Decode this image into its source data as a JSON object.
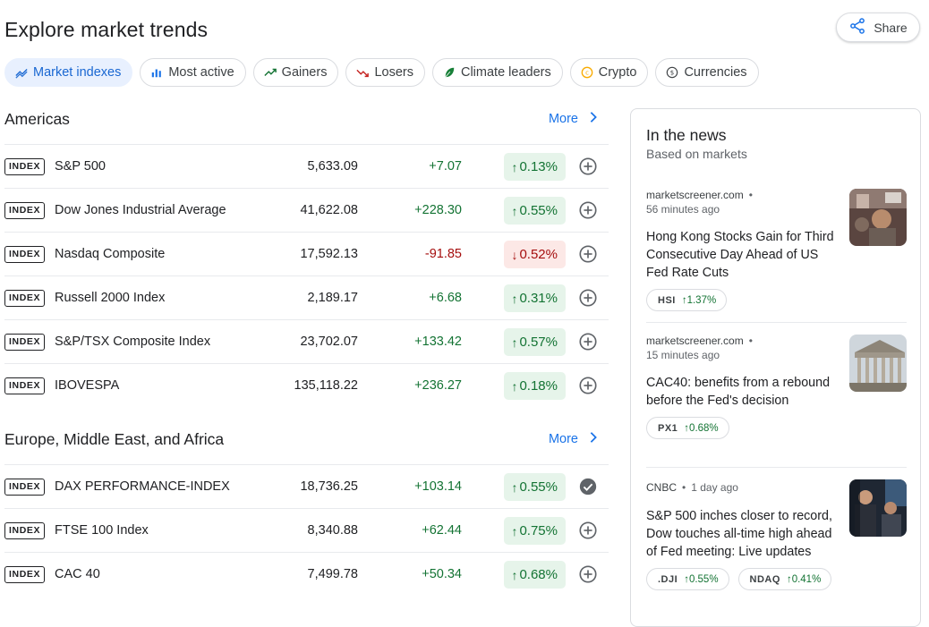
{
  "page": {
    "title": "Explore market trends",
    "share_label": "Share"
  },
  "tabs": [
    {
      "label": "Market indexes",
      "icon": "trending-icon",
      "active": true
    },
    {
      "label": "Most active",
      "icon": "bar-chart-icon"
    },
    {
      "label": "Gainers",
      "icon": "trending-up-icon"
    },
    {
      "label": "Losers",
      "icon": "trending-down-icon"
    },
    {
      "label": "Climate leaders",
      "icon": "leaf-icon"
    },
    {
      "label": "Crypto",
      "icon": "crypto-coin-icon"
    },
    {
      "label": "Currencies",
      "icon": "currency-icon"
    }
  ],
  "sections": [
    {
      "title": "Americas",
      "more_label": "More",
      "rows": [
        {
          "badge": "INDEX",
          "name": "S&P 500",
          "price": "5,633.09",
          "change": "+7.07",
          "pct": "0.13%",
          "dir": "up"
        },
        {
          "badge": "INDEX",
          "name": "Dow Jones Industrial Average",
          "price": "41,622.08",
          "change": "+228.30",
          "pct": "0.55%",
          "dir": "up"
        },
        {
          "badge": "INDEX",
          "name": "Nasdaq Composite",
          "price": "17,592.13",
          "change": "-91.85",
          "pct": "0.52%",
          "dir": "down"
        },
        {
          "badge": "INDEX",
          "name": "Russell 2000 Index",
          "price": "2,189.17",
          "change": "+6.68",
          "pct": "0.31%",
          "dir": "up"
        },
        {
          "badge": "INDEX",
          "name": "S&P/TSX Composite Index",
          "price": "23,702.07",
          "change": "+133.42",
          "pct": "0.57%",
          "dir": "up"
        },
        {
          "badge": "INDEX",
          "name": "IBOVESPA",
          "price": "135,118.22",
          "change": "+236.27",
          "pct": "0.18%",
          "dir": "up"
        }
      ]
    },
    {
      "title": "Europe, Middle East, and Africa",
      "more_label": "More",
      "rows": [
        {
          "badge": "INDEX",
          "name": "DAX PERFORMANCE-INDEX",
          "price": "18,736.25",
          "change": "+103.14",
          "pct": "0.55%",
          "dir": "up",
          "added": true
        },
        {
          "badge": "INDEX",
          "name": "FTSE 100 Index",
          "price": "8,340.88",
          "change": "+62.44",
          "pct": "0.75%",
          "dir": "up"
        },
        {
          "badge": "INDEX",
          "name": "CAC 40",
          "price": "7,499.78",
          "change": "+50.34",
          "pct": "0.68%",
          "dir": "up"
        }
      ]
    }
  ],
  "news": {
    "heading": "In the news",
    "subheading": "Based on markets",
    "items": [
      {
        "source": "marketscreener.com",
        "time": "56 minutes ago",
        "title": "Hong Kong Stocks Gain for Third Consecutive Day Ahead of US Fed Rate Cuts",
        "thumb": "trader-photo",
        "chips": [
          {
            "symbol": "HSI",
            "pct": "1.37%"
          }
        ]
      },
      {
        "source": "marketscreener.com",
        "time": "15 minutes ago",
        "title": "CAC40: benefits from a rebound before the Fed's decision",
        "thumb": "stock-exchange-building-photo",
        "chips": [
          {
            "symbol": "PX1",
            "pct": "0.68%"
          }
        ]
      },
      {
        "source": "CNBC",
        "time": "1 day ago",
        "title": "S&P 500 inches closer to record, Dow touches all-time high ahead of Fed meeting: Live updates",
        "thumb": "trading-floor-photo",
        "chips": [
          {
            "symbol": ".DJI",
            "pct": "0.55%"
          },
          {
            "symbol": "NDAQ",
            "pct": "0.41%"
          }
        ]
      }
    ]
  },
  "colors": {
    "accent": "#1a73e8",
    "up": "#137333",
    "up_bg": "#e6f4ea",
    "down": "#a50e0e",
    "down_bg": "#fce8e6"
  }
}
